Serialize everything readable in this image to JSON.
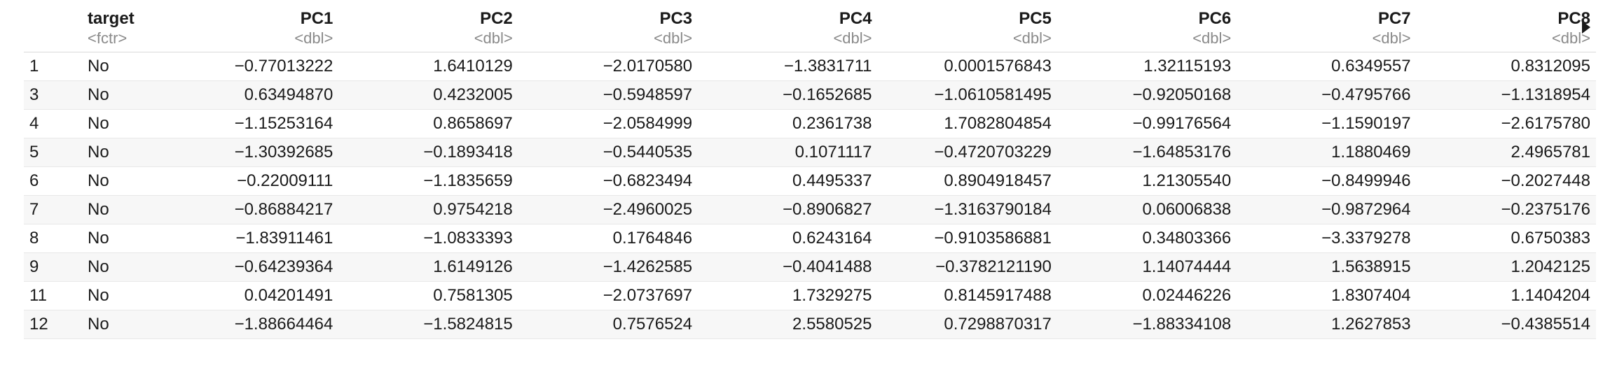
{
  "table": {
    "columns": [
      {
        "name": "",
        "type": ""
      },
      {
        "name": "target",
        "type": "<fctr>"
      },
      {
        "name": "PC1",
        "type": "<dbl>"
      },
      {
        "name": "PC2",
        "type": "<dbl>"
      },
      {
        "name": "PC3",
        "type": "<dbl>"
      },
      {
        "name": "PC4",
        "type": "<dbl>"
      },
      {
        "name": "PC5",
        "type": "<dbl>"
      },
      {
        "name": "PC6",
        "type": "<dbl>"
      },
      {
        "name": "PC7",
        "type": "<dbl>"
      },
      {
        "name": "PC8",
        "type": "<dbl>"
      }
    ],
    "rows": [
      [
        "1",
        "No",
        "−0.77013222",
        "1.6410129",
        "−2.0170580",
        "−1.3831711",
        "0.0001576843",
        "1.32115193",
        "0.6349557",
        "0.8312095"
      ],
      [
        "3",
        "No",
        "0.63494870",
        "0.4232005",
        "−0.5948597",
        "−0.1652685",
        "−1.0610581495",
        "−0.92050168",
        "−0.4795766",
        "−1.1318954"
      ],
      [
        "4",
        "No",
        "−1.15253164",
        "0.8658697",
        "−2.0584999",
        "0.2361738",
        "1.7082804854",
        "−0.99176564",
        "−1.1590197",
        "−2.6175780"
      ],
      [
        "5",
        "No",
        "−1.30392685",
        "−0.1893418",
        "−0.5440535",
        "0.1071117",
        "−0.4720703229",
        "−1.64853176",
        "1.1880469",
        "2.4965781"
      ],
      [
        "6",
        "No",
        "−0.22009111",
        "−1.1835659",
        "−0.6823494",
        "0.4495337",
        "0.8904918457",
        "1.21305540",
        "−0.8499946",
        "−0.2027448"
      ],
      [
        "7",
        "No",
        "−0.86884217",
        "0.9754218",
        "−2.4960025",
        "−0.8906827",
        "−1.3163790184",
        "0.06006838",
        "−0.9872964",
        "−0.2375176"
      ],
      [
        "8",
        "No",
        "−1.83911461",
        "−1.0833393",
        "0.1764846",
        "0.6243164",
        "−0.9103586881",
        "0.34803366",
        "−3.3379278",
        "0.6750383"
      ],
      [
        "9",
        "No",
        "−0.64239364",
        "1.6149126",
        "−1.4262585",
        "−0.4041488",
        "−0.3782121190",
        "1.14074444",
        "1.5638915",
        "1.2042125"
      ],
      [
        "11",
        "No",
        "0.04201491",
        "0.7581305",
        "−2.0737697",
        "1.7329275",
        "0.8145917488",
        "0.02446226",
        "1.8307404",
        "1.1404204"
      ],
      [
        "12",
        "No",
        "−1.88664464",
        "−1.5824815",
        "0.7576524",
        "2.5580525",
        "0.7298870317",
        "−1.88334108",
        "1.2627853",
        "−0.4385514"
      ]
    ]
  },
  "controls": {
    "scroll_right_icon": "triangle-right-icon"
  }
}
